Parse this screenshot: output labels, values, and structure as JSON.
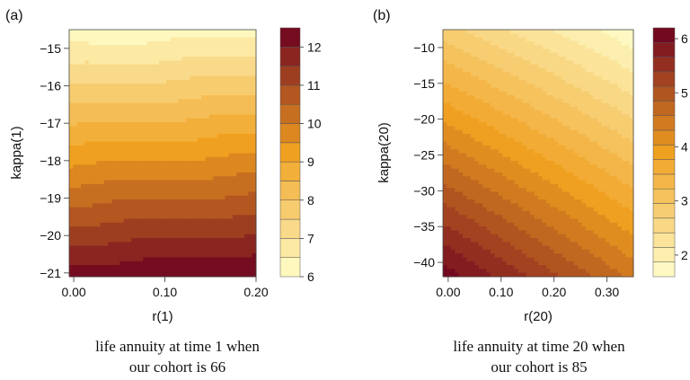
{
  "chart_data": [
    {
      "type": "heatmap",
      "panel_label": "(a)",
      "xlabel": "r(1)",
      "ylabel": "kappa(1)",
      "x_ticks": [
        "0.00",
        "0.10",
        "0.20"
      ],
      "y_ticks": [
        "-15",
        "-16",
        "-17",
        "-18",
        "-19",
        "-20",
        "-21"
      ],
      "xlim": [
        -0.005,
        0.2
      ],
      "ylim": [
        -21.1,
        -14.5
      ],
      "z_range": [
        6,
        12.5
      ],
      "colorbar_ticks": [
        "12",
        "11",
        "10",
        "9",
        "8",
        "7",
        "6"
      ],
      "colorbar_levels": 13,
      "caption": [
        "life annuity at time 1 when",
        "our cohort is 66"
      ]
    },
    {
      "type": "heatmap",
      "panel_label": "(b)",
      "xlabel": "r(20)",
      "ylabel": "kappa(20)",
      "x_ticks": [
        "0.00",
        "0.10",
        "0.20",
        "0.30"
      ],
      "y_ticks": [
        "-10",
        "-15",
        "-20",
        "-25",
        "-30",
        "-35",
        "-40"
      ],
      "xlim": [
        -0.01,
        0.35
      ],
      "ylim": [
        -42,
        -7.5
      ],
      "z_range": [
        1.6,
        6.2
      ],
      "colorbar_ticks": [
        "6",
        "5",
        "4",
        "3",
        "2"
      ],
      "colorbar_levels": 17,
      "caption": [
        "life annuity at time 20 when",
        "our cohort is 85"
      ]
    }
  ],
  "colors": {
    "low": "#ffffcc",
    "mid": "#f0a020",
    "high": "#6b0020"
  }
}
